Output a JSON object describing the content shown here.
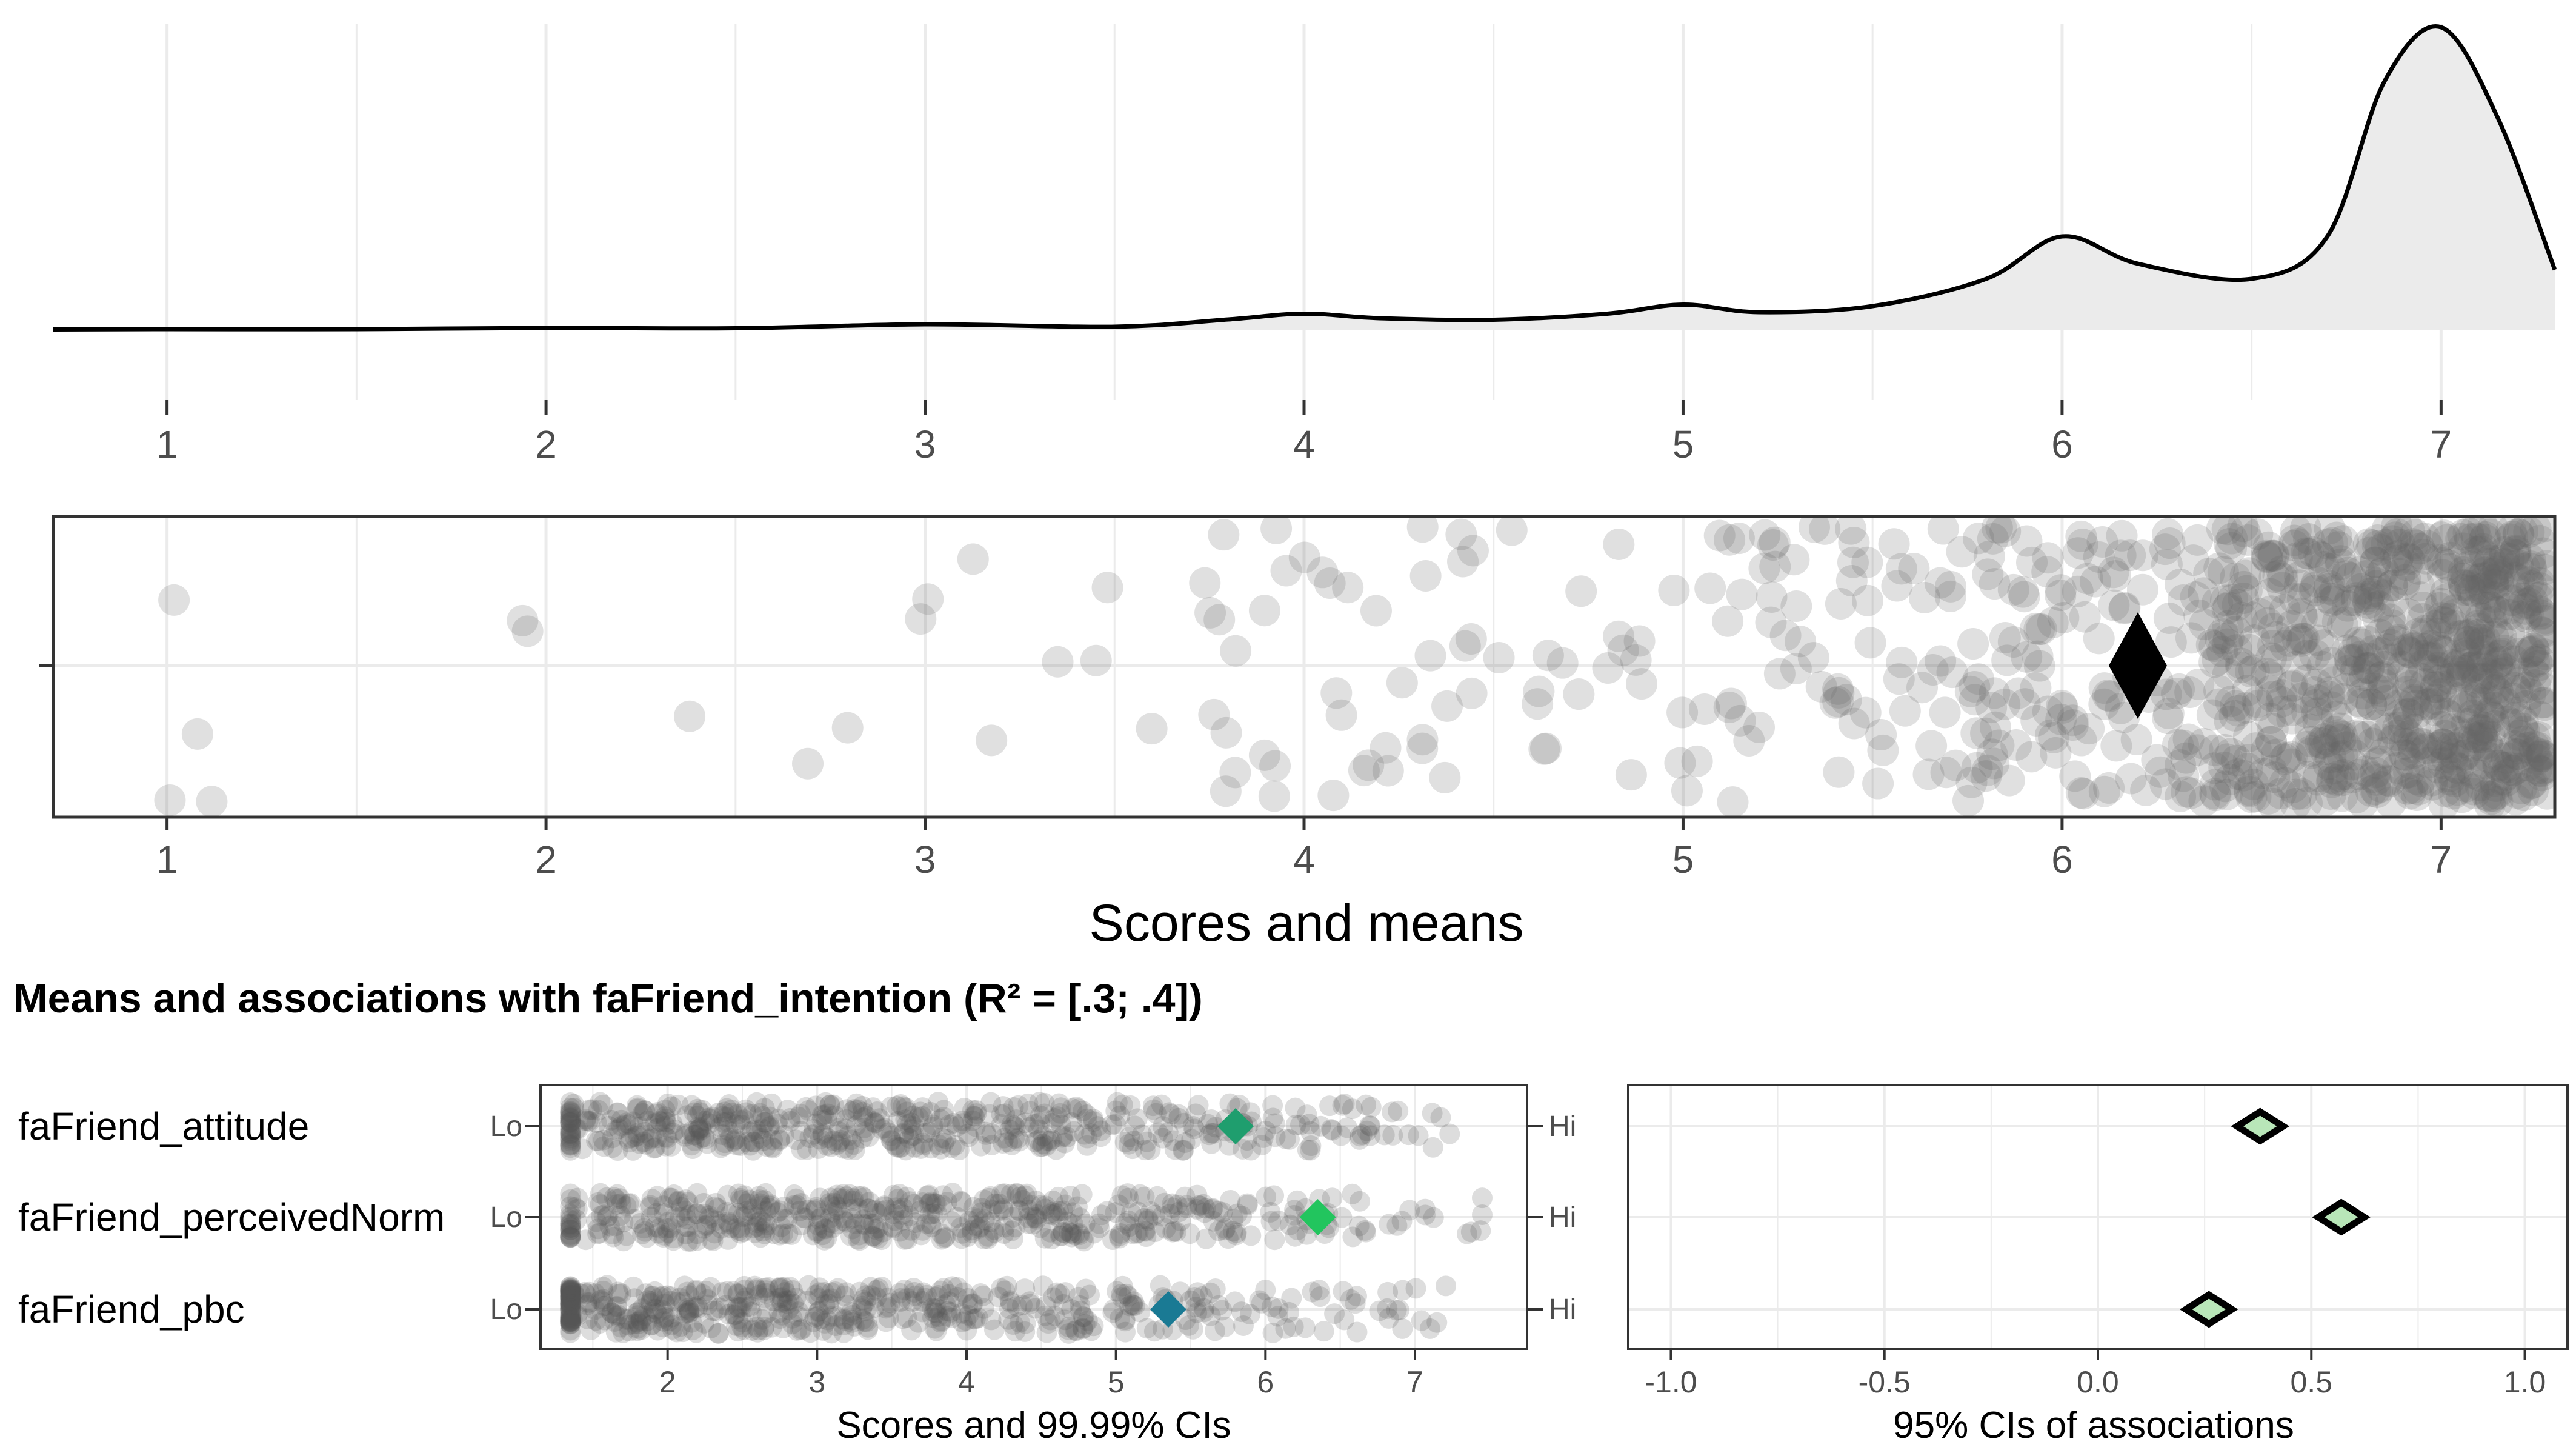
{
  "section_title": "Means and associations with faFriend_intention (R² = [.3; .4])",
  "colors": {
    "density_fill": "#ebebeb",
    "density_line": "#000000",
    "point": "#666666",
    "grid": "#ebebeb",
    "panel_border": "#333333",
    "mean_marker": "#000000",
    "attitude_mean": "#1f9e6e",
    "perceivedNorm_mean": "#22c55e",
    "pbc_mean": "#1a7a94",
    "ci_marker_fill": "#b8e6b8",
    "ci_marker_stroke": "#000000"
  },
  "chart_data": [
    {
      "type": "area",
      "xlim": [
        0.7,
        7.3
      ],
      "x_ticks": [
        "1",
        "2",
        "3",
        "4",
        "5",
        "6",
        "7"
      ],
      "grid": true,
      "x": [
        0.7,
        1.0,
        1.5,
        2.0,
        2.5,
        3.0,
        3.5,
        3.8,
        4.0,
        4.2,
        4.5,
        4.8,
        5.0,
        5.2,
        5.5,
        5.8,
        6.0,
        6.2,
        6.5,
        6.7,
        6.85,
        7.0,
        7.15,
        7.3
      ],
      "y": [
        0.003,
        0.004,
        0.004,
        0.008,
        0.007,
        0.02,
        0.012,
        0.036,
        0.055,
        0.04,
        0.035,
        0.055,
        0.085,
        0.06,
        0.08,
        0.17,
        0.31,
        0.22,
        0.17,
        0.31,
        0.82,
        1.0,
        0.7,
        0.2
      ]
    },
    {
      "type": "scatter",
      "xlabel": "Scores and means",
      "xlim": [
        0.7,
        7.3
      ],
      "x_ticks": [
        "1",
        "2",
        "3",
        "4",
        "5",
        "6",
        "7"
      ],
      "grid": true,
      "mean": 6.2
    },
    {
      "type": "scatter",
      "xlabel": "Scores and 99.99% CIs",
      "xlim": [
        1.15,
        7.75
      ],
      "x_ticks": [
        "2",
        "3",
        "4",
        "5",
        "6",
        "7"
      ],
      "grid": true,
      "categories": [
        "faFriend_attitude",
        "faFriend_perceivedNorm",
        "faFriend_pbc"
      ],
      "anchor_low": "Lo",
      "anchor_high": "Hi",
      "means": [
        5.8,
        6.35,
        5.35
      ]
    },
    {
      "type": "scatter",
      "xlabel": "95% CIs of associations",
      "xlim": [
        -1.1,
        1.1
      ],
      "x_ticks": [
        "-1.0",
        "-0.5",
        "0.0",
        "0.5",
        "1.0"
      ],
      "grid": true,
      "categories": [
        "faFriend_attitude",
        "faFriend_perceivedNorm",
        "faFriend_pbc"
      ],
      "values": [
        0.38,
        0.57,
        0.26
      ]
    }
  ]
}
